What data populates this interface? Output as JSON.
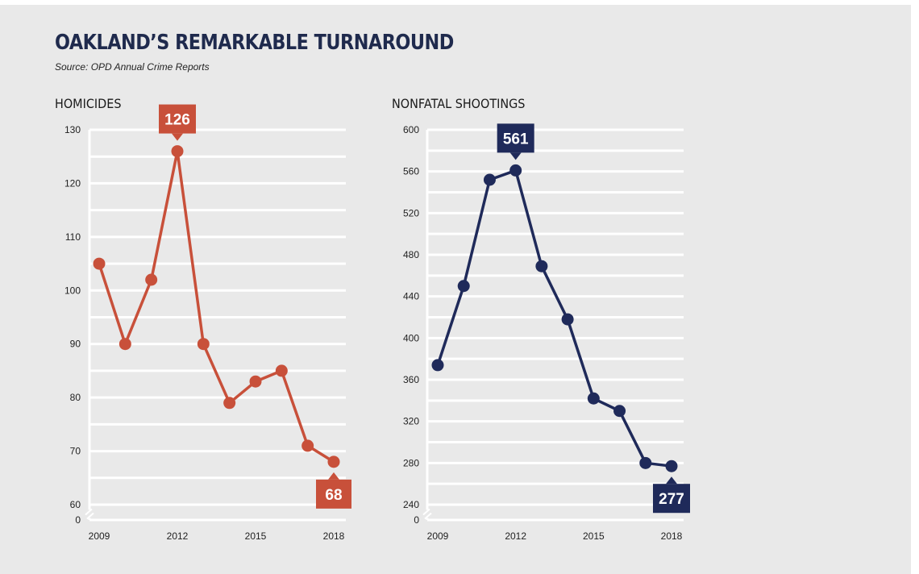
{
  "title": "OAKLAND’S REMARKABLE TURNAROUND",
  "source": "Source: OPD Annual Crime Reports",
  "colors": {
    "background": "#e9e9e9",
    "grid": "#ffffff",
    "homicides": "#c8503a",
    "shootings": "#1f2a5a",
    "title": "#1f2a4d"
  },
  "axis_break_label": "0",
  "chart_data": [
    {
      "type": "line",
      "title": "HOMICIDES",
      "x": [
        2009,
        2010,
        2011,
        2012,
        2013,
        2014,
        2015,
        2016,
        2017,
        2018
      ],
      "values": [
        105,
        90,
        102,
        126,
        90,
        79,
        83,
        85,
        71,
        68
      ],
      "xticks": [
        2009,
        2012,
        2015,
        2018
      ],
      "xtick_labels": [
        "2009",
        "2012",
        "2015",
        "2018"
      ],
      "ylim": [
        60,
        130
      ],
      "yticks": [
        60,
        70,
        80,
        90,
        100,
        110,
        120,
        130
      ],
      "ytick_labels": [
        "60",
        "70",
        "80",
        "90",
        "100",
        "110",
        "120",
        "130"
      ],
      "annotations": [
        {
          "x": 2012,
          "value": 126,
          "label": "126",
          "position": "above"
        },
        {
          "x": 2018,
          "value": 68,
          "label": "68",
          "position": "below"
        }
      ],
      "color": "#c8503a"
    },
    {
      "type": "line",
      "title": "NONFATAL SHOOTINGS",
      "x": [
        2009,
        2010,
        2011,
        2012,
        2013,
        2014,
        2015,
        2016,
        2017,
        2018
      ],
      "values": [
        374,
        450,
        552,
        561,
        469,
        418,
        342,
        330,
        280,
        277
      ],
      "xticks": [
        2009,
        2012,
        2015,
        2018
      ],
      "xtick_labels": [
        "2009",
        "2012",
        "2015",
        "2018"
      ],
      "ylim": [
        240,
        600
      ],
      "yticks": [
        240,
        280,
        320,
        360,
        400,
        440,
        480,
        520,
        560,
        600
      ],
      "ytick_labels": [
        "240",
        "280",
        "320",
        "360",
        "400",
        "440",
        "480",
        "520",
        "560",
        "600"
      ],
      "annotations": [
        {
          "x": 2012,
          "value": 561,
          "label": "561",
          "position": "above"
        },
        {
          "x": 2018,
          "value": 277,
          "label": "277",
          "position": "below"
        }
      ],
      "color": "#1f2a5a"
    }
  ]
}
